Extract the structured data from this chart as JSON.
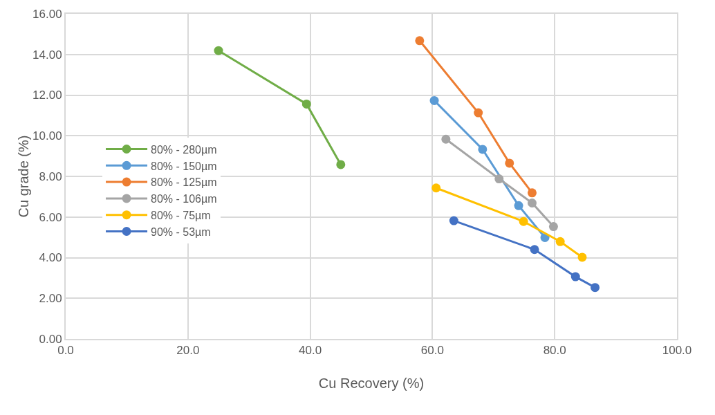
{
  "chart_data": {
    "type": "line",
    "xlabel": "Cu Recovery (%)",
    "ylabel": "Cu grade (%)",
    "xlim": [
      0,
      100
    ],
    "xticks": [
      {
        "value": 0,
        "label": "0.0"
      },
      {
        "value": 20,
        "label": "20.0"
      },
      {
        "value": 40,
        "label": "40.0"
      },
      {
        "value": 60,
        "label": "60.0"
      },
      {
        "value": 80,
        "label": "80.0"
      },
      {
        "value": 100,
        "label": "100.0"
      }
    ],
    "ylim": [
      0,
      16
    ],
    "yticks": [
      {
        "value": 0,
        "label": "0.00"
      },
      {
        "value": 2,
        "label": "2.00"
      },
      {
        "value": 4,
        "label": "4.00"
      },
      {
        "value": 6,
        "label": "6.00"
      },
      {
        "value": 8,
        "label": "8.00"
      },
      {
        "value": 10,
        "label": "10.00"
      },
      {
        "value": 12,
        "label": "12.00"
      },
      {
        "value": 14,
        "label": "14.00"
      },
      {
        "value": 16,
        "label": "16.00"
      }
    ],
    "grid": true,
    "legend": "left",
    "marker": "circle",
    "line_style": "solid",
    "series": [
      {
        "name": "80% - 280µm",
        "color": "#70ad47",
        "x": [
          25.0,
          39.4,
          45.0
        ],
        "values": [
          14.19,
          11.56,
          8.58
        ]
      },
      {
        "name": "80% - 150µm",
        "color": "#5b9bd5",
        "x": [
          60.3,
          68.2,
          74.1,
          78.4
        ],
        "values": [
          11.73,
          9.33,
          6.56,
          4.99
        ]
      },
      {
        "name": "80% - 125µm",
        "color": "#ed7d31",
        "x": [
          57.9,
          67.5,
          72.6,
          76.3
        ],
        "values": [
          14.68,
          11.13,
          8.65,
          7.19
        ]
      },
      {
        "name": "80% - 106µm",
        "color": "#a5a5a5",
        "x": [
          62.2,
          70.9,
          76.3,
          79.8
        ],
        "values": [
          9.83,
          7.88,
          6.69,
          5.53
        ]
      },
      {
        "name": "80% - 75µm",
        "color": "#ffc000",
        "x": [
          60.6,
          74.9,
          80.9,
          84.5
        ],
        "values": [
          7.43,
          5.78,
          4.79,
          4.02
        ]
      },
      {
        "name": "90% - 53µm",
        "color": "#4472c4",
        "x": [
          63.5,
          76.7,
          83.4,
          86.6
        ],
        "values": [
          5.82,
          4.4,
          3.06,
          2.53
        ]
      }
    ]
  }
}
